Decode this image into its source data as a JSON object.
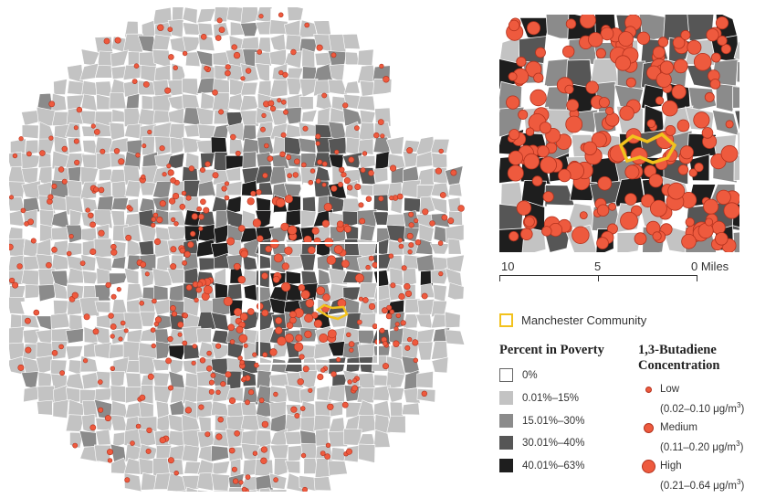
{
  "colors": {
    "poverty_0": "#ffffff",
    "poverty_1": "#c3c3c3",
    "poverty_2": "#8b8b8b",
    "poverty_3": "#565656",
    "poverty_4": "#1e1e1e",
    "dot_fill": "#ee5a3e",
    "dot_stroke": "#b3321e",
    "manchester": "#f2c21d",
    "study_box": "#ffffff"
  },
  "manchester_legend": {
    "label": "Manchester Community"
  },
  "scale": {
    "labels": [
      "10",
      "5",
      "0 Miles"
    ]
  },
  "poverty_legend": {
    "title": "Percent in Poverty",
    "items": [
      {
        "label": "0%",
        "color_key": "poverty_0"
      },
      {
        "label": "0.01%–15%",
        "color_key": "poverty_1"
      },
      {
        "label": "15.01%–30%",
        "color_key": "poverty_2"
      },
      {
        "label": "30.01%–40%",
        "color_key": "poverty_3"
      },
      {
        "label": "40.01%–63%",
        "color_key": "poverty_4"
      }
    ]
  },
  "concentration_legend": {
    "title_line1": "1,3-Butadiene",
    "title_line2": "Concentration",
    "items": [
      {
        "name": "Low",
        "range": "(0.02–0.10 μg/m",
        "unit_sup": "3",
        "range_end": ")"
      },
      {
        "name": "Medium",
        "range": "(0.11–0.20 μg/m",
        "unit_sup": "3",
        "range_end": ")"
      },
      {
        "name": "High",
        "range": "(0.21–0.64 μg/m",
        "unit_sup": "3",
        "range_end": ")"
      }
    ]
  }
}
